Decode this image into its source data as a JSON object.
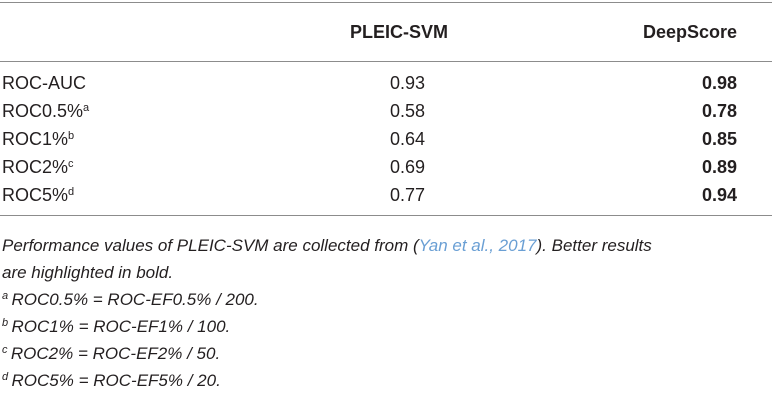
{
  "table": {
    "header": [
      "PLEIC-SVM",
      "DeepScore"
    ],
    "rows": [
      {
        "label": "ROC-AUC",
        "values": [
          "0.93",
          "0.98"
        ]
      },
      {
        "label": "ROC0.5%",
        "sup": "a",
        "values": [
          "0.58",
          "0.78"
        ]
      },
      {
        "label": "ROC1%",
        "sup": "b",
        "values": [
          "0.64",
          "0.85"
        ]
      },
      {
        "label": "ROC2%",
        "sup": "c",
        "values": [
          "0.69",
          "0.89"
        ]
      },
      {
        "label": "ROC5%",
        "sup": "d",
        "values": [
          "0.77",
          "0.94"
        ]
      }
    ]
  },
  "note": {
    "before": "Performance values of PLEIC-SVM are collected from (",
    "link": "Yan et al., 2017",
    "after_line1": "). Better results",
    "after_line2": "are highlighted in bold."
  },
  "footnotes": [
    {
      "mark": "a",
      "text": "ROC0.5% = ROC-EF0.5% / 200."
    },
    {
      "mark": "b",
      "text": "ROC1% = ROC-EF1% / 100."
    },
    {
      "mark": "c",
      "text": "ROC2% = ROC-EF2% / 50."
    },
    {
      "mark": "d",
      "text": "ROC5% = ROC-EF5% / 20."
    }
  ]
}
